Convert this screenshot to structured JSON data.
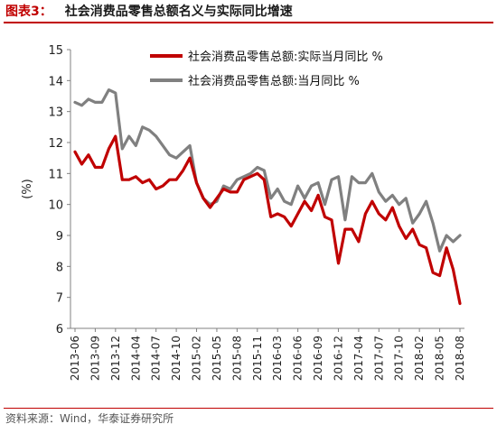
{
  "figure": {
    "label": "图表3：",
    "title": "社会消费品零售总额名义与实际同比增速",
    "source": "资料来源：Wind，华泰证券研究所"
  },
  "chart_data": {
    "type": "line",
    "ylabel": "(%)",
    "ylim": [
      6,
      15
    ],
    "yticks": [
      6,
      7,
      8,
      9,
      10,
      11,
      12,
      13,
      14,
      15
    ],
    "x_tick_labels": [
      "2013-06",
      "2013-09",
      "2013-12",
      "2014-04",
      "2014-07",
      "2014-10",
      "2015-02",
      "2015-05",
      "2015-08",
      "2015-11",
      "2016-03",
      "2016-06",
      "2016-09",
      "2016-12",
      "2017-04",
      "2017-07",
      "2017-10",
      "2018-02",
      "2018-05",
      "2018-08"
    ],
    "x": [
      "2013-06",
      "2013-07",
      "2013-08",
      "2013-09",
      "2013-10",
      "2013-11",
      "2013-12",
      "2014-02",
      "2014-03",
      "2014-04",
      "2014-05",
      "2014-06",
      "2014-07",
      "2014-08",
      "2014-09",
      "2014-10",
      "2014-11",
      "2014-12",
      "2015-02",
      "2015-03",
      "2015-04",
      "2015-05",
      "2015-06",
      "2015-07",
      "2015-08",
      "2015-09",
      "2015-10",
      "2015-11",
      "2015-12",
      "2016-02",
      "2016-03",
      "2016-04",
      "2016-05",
      "2016-06",
      "2016-07",
      "2016-08",
      "2016-09",
      "2016-10",
      "2016-11",
      "2016-12",
      "2017-02",
      "2017-03",
      "2017-04",
      "2017-05",
      "2017-06",
      "2017-07",
      "2017-08",
      "2017-09",
      "2017-10",
      "2017-11",
      "2017-12",
      "2018-02",
      "2018-03",
      "2018-04",
      "2018-05",
      "2018-06",
      "2018-07",
      "2018-08"
    ],
    "legend_position": "top-right",
    "grid": false,
    "series": [
      {
        "name": "社会消费品零售总额:实际当月同比 %",
        "color": "#c00000",
        "values": [
          11.7,
          11.3,
          11.6,
          11.2,
          11.2,
          11.8,
          12.2,
          10.8,
          10.8,
          10.9,
          10.7,
          10.8,
          10.5,
          10.6,
          10.8,
          10.8,
          11.1,
          11.5,
          10.7,
          10.2,
          9.9,
          10.2,
          10.5,
          10.4,
          10.4,
          10.8,
          10.9,
          11.0,
          10.8,
          9.6,
          9.7,
          9.6,
          9.3,
          9.7,
          10.1,
          9.8,
          10.3,
          9.6,
          9.5,
          8.1,
          9.2,
          9.2,
          8.8,
          9.7,
          10.1,
          9.7,
          9.5,
          9.9,
          9.3,
          8.9,
          9.2,
          8.7,
          8.6,
          7.8,
          7.7,
          8.6,
          7.9,
          6.8
        ]
      },
      {
        "name": "社会消费品零售总额:当月同比 %",
        "color": "#808080",
        "values": [
          13.3,
          13.2,
          13.4,
          13.3,
          13.3,
          13.7,
          13.6,
          11.8,
          12.2,
          11.9,
          12.5,
          12.4,
          12.2,
          11.9,
          11.6,
          11.5,
          11.7,
          11.9,
          10.7,
          10.2,
          10.0,
          10.1,
          10.6,
          10.5,
          10.8,
          10.9,
          11.0,
          11.2,
          11.1,
          10.2,
          10.5,
          10.1,
          10.0,
          10.6,
          10.2,
          10.6,
          10.7,
          10.0,
          10.8,
          10.9,
          9.5,
          10.9,
          10.7,
          10.7,
          11.0,
          10.4,
          10.1,
          10.3,
          10.0,
          10.2,
          9.4,
          9.7,
          10.1,
          9.4,
          8.5,
          9.0,
          8.8,
          9.0
        ]
      }
    ]
  }
}
